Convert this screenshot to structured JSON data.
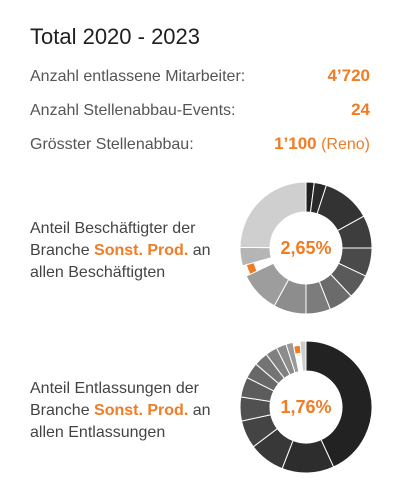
{
  "title": "Total 2020 - 2023",
  "stats": [
    {
      "label": "Anzahl entlassene Mitarbeiter:",
      "value": "4’720",
      "note": ""
    },
    {
      "label": "Anzahl Stellenabbau-Events:",
      "value": "24",
      "note": ""
    },
    {
      "label": "Grösster Stellenabbau:",
      "value": "1’100",
      "note": "(Reno)"
    }
  ],
  "charts": [
    {
      "text_before": "Anteil Beschäftigter der Branche ",
      "highlight": "Sonst. Prod.",
      "text_after": " an allen Beschäftigten",
      "center": "2,65%"
    },
    {
      "text_before": "Anteil Entlassungen der Branche ",
      "highlight": "Sonst. Prod.",
      "text_after": " an allen Entlassungen",
      "center": "1,76%"
    }
  ],
  "chart_data": [
    {
      "type": "pie",
      "title": "",
      "highlight_value": 2.65,
      "slices": [
        {
          "value": 2.0,
          "color": "#222222"
        },
        {
          "value": 3.0,
          "color": "#2a2a2a"
        },
        {
          "value": 12.0,
          "color": "#333333"
        },
        {
          "value": 8.0,
          "color": "#3d3d3d"
        },
        {
          "value": 7.0,
          "color": "#4a4a4a"
        },
        {
          "value": 6.0,
          "color": "#5a5a5a"
        },
        {
          "value": 6.0,
          "color": "#6b6b6b"
        },
        {
          "value": 6.0,
          "color": "#7c7c7c"
        },
        {
          "value": 8.0,
          "color": "#8d8d8d"
        },
        {
          "value": 10.0,
          "color": "#9d9d9d"
        },
        {
          "value": 2.65,
          "color": "#f07c24"
        },
        {
          "value": 4.5,
          "color": "#b5b5b5"
        },
        {
          "value": 24.85,
          "color": "#cfcfcf"
        }
      ]
    },
    {
      "type": "pie",
      "title": "",
      "highlight_value": 1.76,
      "slices": [
        {
          "value": 44.0,
          "color": "#222222"
        },
        {
          "value": 13.0,
          "color": "#2d2d2d"
        },
        {
          "value": 9.0,
          "color": "#383838"
        },
        {
          "value": 7.0,
          "color": "#444444"
        },
        {
          "value": 6.0,
          "color": "#505050"
        },
        {
          "value": 5.0,
          "color": "#5c5c5c"
        },
        {
          "value": 4.0,
          "color": "#686868"
        },
        {
          "value": 3.5,
          "color": "#747474"
        },
        {
          "value": 3.0,
          "color": "#808080"
        },
        {
          "value": 2.5,
          "color": "#8c8c8c"
        },
        {
          "value": 1.74,
          "color": "#9a9a9a"
        },
        {
          "value": 1.76,
          "color": "#f07c24"
        },
        {
          "value": 1.5,
          "color": "#cccccc"
        }
      ]
    }
  ]
}
